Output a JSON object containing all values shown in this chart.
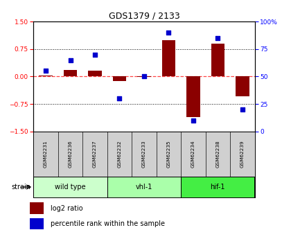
{
  "title": "GDS1379 / 2133",
  "samples": [
    "GSM62231",
    "GSM62236",
    "GSM62237",
    "GSM62232",
    "GSM62233",
    "GSM62235",
    "GSM62234",
    "GSM62238",
    "GSM62239"
  ],
  "log2_ratio": [
    0.02,
    0.17,
    0.15,
    -0.13,
    -0.02,
    1.0,
    -1.1,
    0.9,
    -0.55
  ],
  "percentile_rank": [
    55,
    65,
    70,
    30,
    50,
    90,
    10,
    85,
    20
  ],
  "bar_color": "#8B0000",
  "dot_color": "#0000CD",
  "ylim_left": [
    -1.5,
    1.5
  ],
  "ylim_right": [
    0,
    100
  ],
  "yticks_left": [
    -1.5,
    -0.75,
    0,
    0.75,
    1.5
  ],
  "yticks_right": [
    0,
    25,
    50,
    75,
    100
  ],
  "groups": [
    {
      "label": "wild type",
      "start": 0,
      "end": 3,
      "color": "#ccffcc"
    },
    {
      "label": "vhl-1",
      "start": 3,
      "end": 6,
      "color": "#aaffaa"
    },
    {
      "label": "hif-1",
      "start": 6,
      "end": 9,
      "color": "#44ee44"
    }
  ],
  "legend_bar_label": "log2 ratio",
  "legend_dot_label": "percentile rank within the sample",
  "strain_label": "strain",
  "background_color": "#ffffff",
  "zero_line_color": "#ff4444"
}
